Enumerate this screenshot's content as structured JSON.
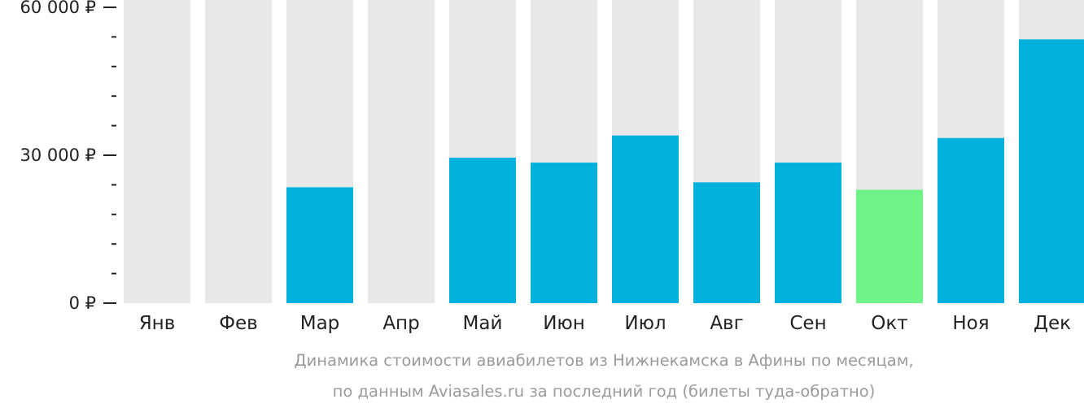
{
  "chart_data": {
    "type": "bar",
    "categories": [
      "Янв",
      "Фев",
      "Мар",
      "Апр",
      "Май",
      "Июн",
      "Июл",
      "Авг",
      "Сен",
      "Окт",
      "Ноя",
      "Дек"
    ],
    "values": [
      null,
      null,
      23500,
      null,
      29500,
      28500,
      34000,
      24500,
      28500,
      23000,
      33500,
      53500
    ],
    "highlight_index": 9,
    "ylim": [
      0,
      60000
    ],
    "yticks": [
      {
        "value": 0,
        "label": "0 ₽"
      },
      {
        "value": 30000,
        "label": "30 000 ₽"
      },
      {
        "value": 60000,
        "label": "60 000 ₽"
      }
    ],
    "minor_tick_step": 6000,
    "grid": false,
    "colors": {
      "bar": "#00b1dd",
      "highlight": "#6ef386",
      "background_bar": "#e8e8e8"
    },
    "caption": [
      "Динамика стоимости авиабилетов из Нижнекамска в Афины по месяцам,",
      "по данным Aviasales.ru за последний год (билеты туда-обратно)"
    ]
  }
}
